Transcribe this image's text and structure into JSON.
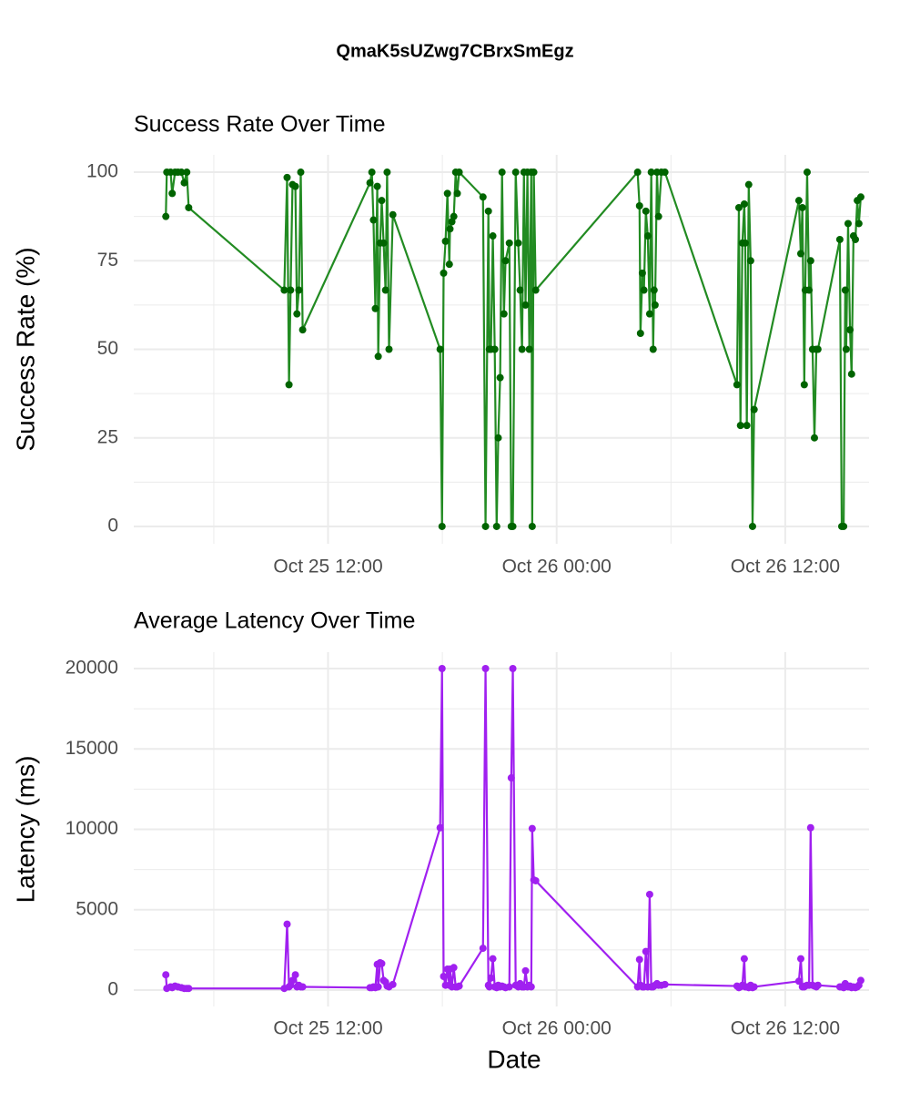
{
  "title": "QmaK5sUZwg7CBrxSmEgz",
  "x_label": "Date",
  "chart_data": [
    {
      "type": "line",
      "title": "Success Rate Over Time",
      "y_label": "Success Rate (%)",
      "color": "#228B22",
      "point_color": "#006400",
      "grid": true,
      "xlim": [
        "Oct 25 01:48",
        "Oct 26 16:24"
      ],
      "xticks": [
        "Oct 25 12:00",
        "Oct 26 00:00",
        "Oct 26 12:00"
      ],
      "ylim": [
        -4.9,
        104.9
      ],
      "yticks": [
        0,
        25,
        50,
        75,
        100
      ],
      "x": [
        "Oct 25 03:29",
        "Oct 25 03:32",
        "Oct 25 03:44",
        "Oct 25 03:49",
        "Oct 25 03:58",
        "Oct 25 04:07",
        "Oct 25 04:18",
        "Oct 25 04:27",
        "Oct 25 04:35",
        "Oct 25 04:41",
        "Oct 25 09:42",
        "Oct 25 09:51",
        "Oct 25 09:57",
        "Oct 25 10:02",
        "Oct 25 10:08",
        "Oct 25 10:17",
        "Oct 25 10:22",
        "Oct 25 10:28",
        "Oct 25 10:34",
        "Oct 25 10:40",
        "Oct 25 14:12",
        "Oct 25 14:18",
        "Oct 25 14:23",
        "Oct 25 14:29",
        "Oct 25 14:35",
        "Oct 25 14:38",
        "Oct 25 14:44",
        "Oct 25 14:49",
        "Oct 25 14:55",
        "Oct 25 15:01",
        "Oct 25 15:06",
        "Oct 25 15:12",
        "Oct 25 15:24",
        "Oct 25 17:53",
        "Oct 25 17:59",
        "Oct 25 18:04",
        "Oct 25 18:10",
        "Oct 25 18:16",
        "Oct 25 18:22",
        "Oct 25 18:24",
        "Oct 25 18:30",
        "Oct 25 18:36",
        "Oct 25 18:42",
        "Oct 25 18:47",
        "Oct 25 18:53",
        "Oct 25 20:08",
        "Oct 25 20:16",
        "Oct 25 20:25",
        "Oct 25 20:28",
        "Oct 25 20:33",
        "Oct 25 20:39",
        "Oct 25 20:45",
        "Oct 25 20:51",
        "Oct 25 20:56",
        "Oct 25 21:02",
        "Oct 25 21:08",
        "Oct 25 21:14",
        "Oct 25 21:19",
        "Oct 25 21:31",
        "Oct 25 21:37",
        "Oct 25 21:42",
        "Oct 25 21:51",
        "Oct 25 21:59",
        "Oct 25 22:05",
        "Oct 25 22:11",
        "Oct 25 22:17",
        "Oct 25 22:22",
        "Oct 25 22:28",
        "Oct 25 22:34",
        "Oct 25 22:40",
        "Oct 25 22:43",
        "Oct 25 22:48",
        "Oct 25 22:54",
        "Oct 26 04:15",
        "Oct 26 04:21",
        "Oct 26 04:24",
        "Oct 26 04:30",
        "Oct 26 04:35",
        "Oct 26 04:41",
        "Oct 26 04:47",
        "Oct 26 04:53",
        "Oct 26 04:58",
        "Oct 26 05:04",
        "Oct 26 05:07",
        "Oct 26 05:10",
        "Oct 26 05:16",
        "Oct 26 05:21",
        "Oct 26 05:30",
        "Oct 26 05:41",
        "Oct 26 09:28",
        "Oct 26 09:34",
        "Oct 26 09:39",
        "Oct 26 09:45",
        "Oct 26 09:51",
        "Oct 26 09:54",
        "Oct 26 09:59",
        "Oct 26 10:05",
        "Oct 26 10:11",
        "Oct 26 10:17",
        "Oct 26 10:22",
        "Oct 26 12:43",
        "Oct 26 12:49",
        "Oct 26 12:54",
        "Oct 26 13:00",
        "Oct 26 13:03",
        "Oct 26 13:09",
        "Oct 26 13:15",
        "Oct 26 13:20",
        "Oct 26 13:26",
        "Oct 26 13:32",
        "Oct 26 13:38",
        "Oct 26 13:43",
        "Oct 26 14:52",
        "Oct 26 14:58",
        "Oct 26 15:04",
        "Oct 26 15:09",
        "Oct 26 15:12",
        "Oct 26 15:18",
        "Oct 26 15:24",
        "Oct 26 15:29",
        "Oct 26 15:35",
        "Oct 26 15:41",
        "Oct 26 15:47",
        "Oct 26 15:52",
        "Oct 26 15:58"
      ],
      "values": [
        87.5,
        100,
        100,
        94,
        100,
        100,
        100,
        97,
        100,
        90,
        66.7,
        98.5,
        40,
        66.7,
        96.5,
        96,
        60,
        66.7,
        100,
        55.5,
        97,
        100,
        86.5,
        61.5,
        96,
        48,
        80,
        92,
        80,
        66.7,
        100,
        50,
        88,
        50,
        0,
        71.5,
        80.5,
        94,
        74,
        84,
        86,
        87.5,
        100,
        94,
        100,
        93,
        0,
        89,
        50,
        50,
        82,
        50,
        0,
        25,
        42,
        100,
        60,
        75,
        80,
        0,
        0,
        100,
        80,
        66.7,
        50,
        100,
        62.5,
        100,
        50,
        100,
        0,
        100,
        66.7,
        100,
        90.5,
        54.5,
        71.5,
        66.7,
        89,
        82,
        60,
        100,
        50,
        66.7,
        62.5,
        100,
        87.5,
        100,
        100,
        40,
        90,
        28.5,
        80,
        91,
        80,
        28.5,
        96.5,
        75,
        0,
        33,
        92,
        77,
        90,
        40,
        66.7,
        100,
        66.7,
        75,
        50,
        25,
        50,
        50,
        81,
        0,
        0,
        66.7,
        50,
        85.5,
        55.5,
        43,
        82,
        81,
        92,
        85.5,
        93
      ]
    },
    {
      "type": "line",
      "title": "Average Latency Over Time",
      "y_label": "Latency (ms)",
      "color": "#A020F0",
      "point_color": "#A020F0",
      "grid": true,
      "xlim": [
        "Oct 25 01:48",
        "Oct 26 16:24"
      ],
      "xticks": [
        "Oct 25 12:00",
        "Oct 26 00:00",
        "Oct 26 12:00"
      ],
      "ylim": [
        -1020,
        21020
      ],
      "yticks": [
        0,
        5000,
        10000,
        15000,
        20000
      ],
      "x": [
        "Oct 25 03:29",
        "Oct 25 03:32",
        "Oct 25 03:44",
        "Oct 25 03:49",
        "Oct 25 03:58",
        "Oct 25 04:07",
        "Oct 25 04:18",
        "Oct 25 04:27",
        "Oct 25 04:35",
        "Oct 25 04:41",
        "Oct 25 09:42",
        "Oct 25 09:51",
        "Oct 25 09:57",
        "Oct 25 10:02",
        "Oct 25 10:08",
        "Oct 25 10:17",
        "Oct 25 10:22",
        "Oct 25 10:28",
        "Oct 25 10:34",
        "Oct 25 10:40",
        "Oct 25 14:12",
        "Oct 25 14:18",
        "Oct 25 14:23",
        "Oct 25 14:29",
        "Oct 25 14:35",
        "Oct 25 14:38",
        "Oct 25 14:44",
        "Oct 25 14:49",
        "Oct 25 14:55",
        "Oct 25 15:01",
        "Oct 25 15:06",
        "Oct 25 15:12",
        "Oct 25 15:24",
        "Oct 25 17:53",
        "Oct 25 17:59",
        "Oct 25 18:04",
        "Oct 25 18:10",
        "Oct 25 18:16",
        "Oct 25 18:22",
        "Oct 25 18:24",
        "Oct 25 18:30",
        "Oct 25 18:36",
        "Oct 25 18:42",
        "Oct 25 18:47",
        "Oct 25 18:53",
        "Oct 25 20:08",
        "Oct 25 20:16",
        "Oct 25 20:25",
        "Oct 25 20:28",
        "Oct 25 20:33",
        "Oct 25 20:39",
        "Oct 25 20:45",
        "Oct 25 20:51",
        "Oct 25 20:56",
        "Oct 25 21:02",
        "Oct 25 21:08",
        "Oct 25 21:14",
        "Oct 25 21:19",
        "Oct 25 21:31",
        "Oct 25 21:37",
        "Oct 25 21:42",
        "Oct 25 21:51",
        "Oct 25 21:59",
        "Oct 25 22:05",
        "Oct 25 22:11",
        "Oct 25 22:17",
        "Oct 25 22:22",
        "Oct 25 22:28",
        "Oct 25 22:34",
        "Oct 25 22:40",
        "Oct 25 22:43",
        "Oct 25 22:48",
        "Oct 25 22:54",
        "Oct 26 04:15",
        "Oct 26 04:21",
        "Oct 26 04:24",
        "Oct 26 04:30",
        "Oct 26 04:35",
        "Oct 26 04:41",
        "Oct 26 04:47",
        "Oct 26 04:53",
        "Oct 26 04:58",
        "Oct 26 05:04",
        "Oct 26 05:07",
        "Oct 26 05:10",
        "Oct 26 05:16",
        "Oct 26 05:21",
        "Oct 26 05:30",
        "Oct 26 05:41",
        "Oct 26 09:28",
        "Oct 26 09:34",
        "Oct 26 09:39",
        "Oct 26 09:45",
        "Oct 26 09:51",
        "Oct 26 09:54",
        "Oct 26 09:59",
        "Oct 26 10:05",
        "Oct 26 10:11",
        "Oct 26 10:17",
        "Oct 26 10:22",
        "Oct 26 12:43",
        "Oct 26 12:49",
        "Oct 26 12:54",
        "Oct 26 13:00",
        "Oct 26 13:03",
        "Oct 26 13:09",
        "Oct 26 13:15",
        "Oct 26 13:20",
        "Oct 26 13:26",
        "Oct 26 13:32",
        "Oct 26 13:38",
        "Oct 26 13:43",
        "Oct 26 14:52",
        "Oct 26 14:58",
        "Oct 26 15:04",
        "Oct 26 15:09",
        "Oct 26 15:12",
        "Oct 26 15:18",
        "Oct 26 15:24",
        "Oct 26 15:29",
        "Oct 26 15:35",
        "Oct 26 15:41",
        "Oct 26 15:47",
        "Oct 26 15:52",
        "Oct 26 15:58"
      ],
      "values": [
        950,
        100,
        200,
        150,
        250,
        200,
        150,
        100,
        100,
        100,
        100,
        4100,
        200,
        300,
        600,
        950,
        200,
        300,
        200,
        200,
        150,
        150,
        200,
        150,
        1600,
        200,
        1700,
        1650,
        600,
        500,
        250,
        200,
        350,
        10100,
        20000,
        850,
        300,
        1300,
        300,
        1300,
        200,
        1400,
        200,
        200,
        250,
        2600,
        20000,
        300,
        200,
        750,
        1950,
        200,
        150,
        300,
        200,
        250,
        200,
        150,
        200,
        13200,
        20000,
        300,
        200,
        400,
        200,
        200,
        1200,
        200,
        300,
        200,
        10050,
        6850,
        6800,
        200,
        1900,
        300,
        200,
        200,
        2400,
        200,
        5950,
        200,
        200,
        250,
        300,
        400,
        300,
        300,
        350,
        250,
        150,
        200,
        300,
        1950,
        200,
        200,
        150,
        300,
        150,
        200,
        550,
        1950,
        200,
        200,
        250,
        300,
        300,
        10100,
        300,
        250,
        200,
        300,
        200,
        200,
        150,
        400,
        300,
        200,
        250,
        150,
        200,
        150,
        200,
        300,
        600
      ]
    }
  ]
}
